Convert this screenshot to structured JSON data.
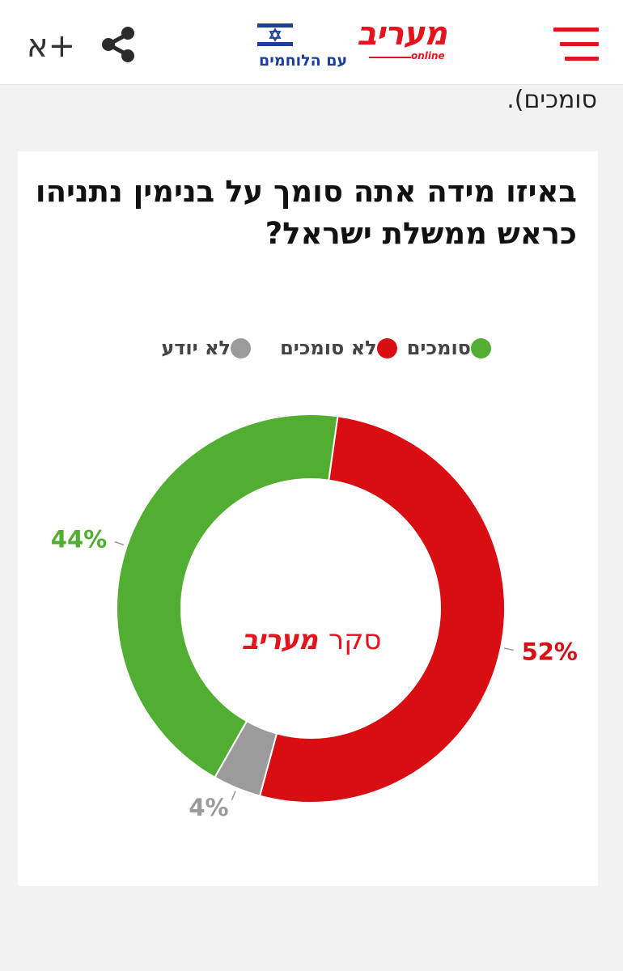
{
  "header": {
    "font_size_label": "א+",
    "logo_main": "מעריב",
    "logo_online": "online",
    "logo_sub": "עם הלוחמים",
    "share_icon": "share-icon",
    "menu_icon": "hamburger-menu-icon"
  },
  "article": {
    "lead_text": "סומכים)."
  },
  "poll": {
    "brand_prefix": "סקר",
    "brand_name": "מעריב"
  },
  "colors": {
    "brand_red": "#e3141d",
    "brand_blue": "#1d3f9a",
    "support": "#52ad33",
    "not_support": "#d90e12",
    "dont_know": "#9b9b9b"
  },
  "chart_data": {
    "type": "pie",
    "title": "באיזו מידה אתה סומך על בנימין נתניהו כראש ממשלת ישראל?",
    "legend_position": "top",
    "categories": [
      "לא יודע",
      "לא סומכים",
      "סומכים"
    ],
    "values": [
      4,
      52,
      44
    ],
    "value_labels": [
      "4%",
      "52%",
      "44%"
    ],
    "colors": [
      "#9b9b9b",
      "#d90e12",
      "#52ad33"
    ],
    "donut": true
  }
}
